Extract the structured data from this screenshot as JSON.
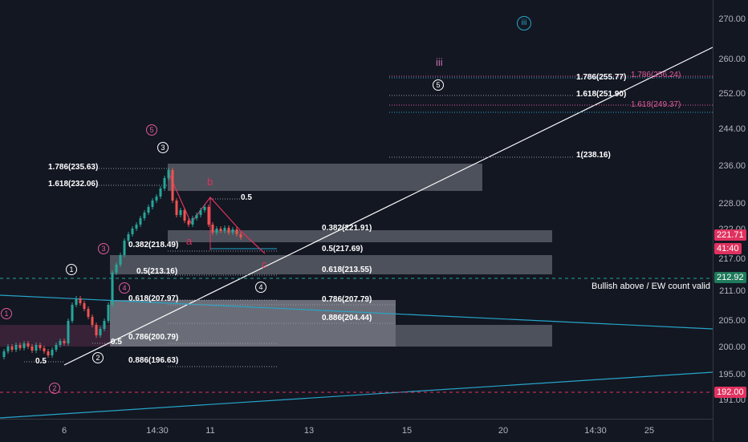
{
  "price_axis": {
    "ticks": [
      "270.00",
      "260.00",
      "252.00",
      "244.00",
      "236.00",
      "228.00",
      "222.00",
      "217.00",
      "211.00",
      "205.00",
      "200.00",
      "195.00",
      "191.00"
    ],
    "badges": [
      {
        "label": "221.71",
        "color": "#e0325f"
      },
      {
        "label": "41:40",
        "color": "#e0325f"
      },
      {
        "label": "212.92",
        "color": "#1e7a5a"
      },
      {
        "label": "192.00",
        "color": "#e0325f"
      }
    ]
  },
  "time_axis": {
    "labels": [
      "6",
      "14:30",
      "11",
      "13",
      "15",
      "20",
      "14:30",
      "25"
    ]
  },
  "fib_levels": [
    {
      "text": "1.786(235.63)"
    },
    {
      "text": "1.618(232.06)"
    },
    {
      "text": "0.382(218.49)"
    },
    {
      "text": "0.5(213.16)"
    },
    {
      "text": "0.618(207.97)"
    },
    {
      "text": "0.786(200.79)"
    },
    {
      "text": "0.886(196.63)"
    },
    {
      "text": "0.5"
    },
    {
      "text": "0.382(221.91)"
    },
    {
      "text": "0.5(217.69)"
    },
    {
      "text": "0.618(213.55)"
    },
    {
      "text": "0.786(207.79)"
    },
    {
      "text": "0.886(204.44)"
    },
    {
      "text": "1.786(255.77)"
    },
    {
      "text": "1.618(251.90)"
    },
    {
      "text": "1(238.16)"
    },
    {
      "text": "1.786(256.24)"
    },
    {
      "text": "1.618(249.37)"
    },
    {
      "text": "0.5"
    },
    {
      "text": "0.5"
    }
  ],
  "wave_labels": [
    "1",
    "2",
    "3",
    "4",
    "5",
    "3",
    "4",
    "5",
    "1",
    "2",
    "4",
    "5",
    "iii"
  ],
  "abc_labels": [
    "a",
    "b",
    "c",
    "iii"
  ],
  "annotation": "Bullish above / EW count valid",
  "colors": {
    "background": "#131722",
    "up": "#26a69a",
    "down": "#ef5350",
    "trendline": "#26a5c9",
    "accent": "#e0325f"
  }
}
